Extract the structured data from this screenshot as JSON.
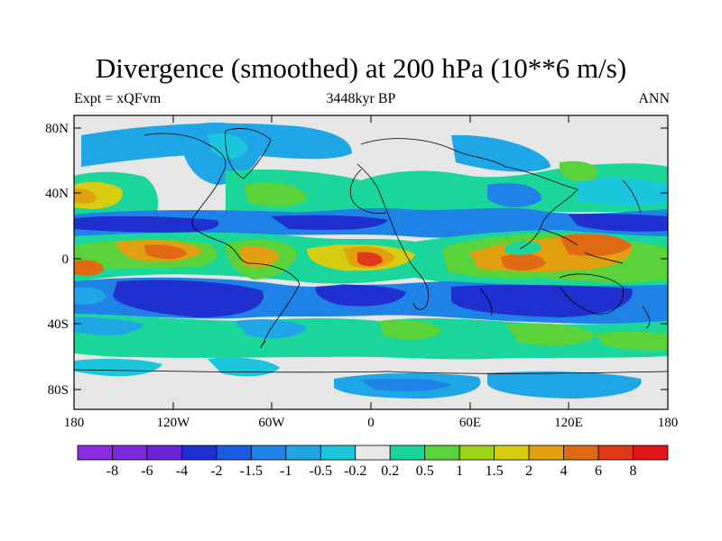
{
  "plot": {
    "title": "Divergence (smoothed) at 200 hPa (10**6 m/s)",
    "expt_label": "Expt = xQFvm",
    "period_label": "3448kyr BP",
    "season_label": "ANN"
  },
  "axes": {
    "x_ticks": [
      "180",
      "120W",
      "60W",
      "0",
      "60E",
      "120E",
      "180"
    ],
    "y_ticks": [
      "80N",
      "40N",
      "0",
      "40S",
      "80S"
    ]
  },
  "colorbar": {
    "labels": [
      "-8",
      "-6",
      "-4",
      "-2",
      "-1.5",
      "-1",
      "-0.5",
      "-0.2",
      "0.2",
      "0.5",
      "1",
      "1.5",
      "2",
      "4",
      "6",
      "8"
    ],
    "colors": [
      "#8a2be2",
      "#7a28dc",
      "#6a24d8",
      "#1f2fd0",
      "#1c5ae0",
      "#1f82e6",
      "#1ea6e6",
      "#19c6dc",
      "#e8e8e8",
      "#1ad69a",
      "#5ad23a",
      "#9cd21a",
      "#d6cc10",
      "#e0a010",
      "#e06a14",
      "#e03a1a",
      "#e01616"
    ]
  },
  "colors": {
    "background": "#e6e6e6",
    "strong_negative": "#1f2fd0",
    "negative": "#1f82e6",
    "weak_negative": "#19c6dc",
    "weak_positive": "#1ad69a",
    "positive": "#5ad23a",
    "strong_positive": "#e0a010",
    "max_positive": "#e03a1a"
  }
}
